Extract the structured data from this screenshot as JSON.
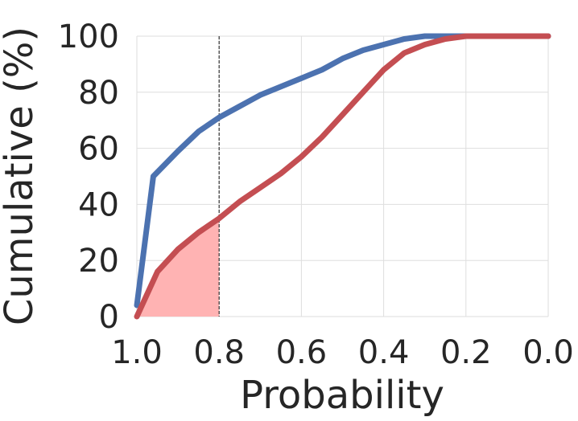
{
  "chart_data": {
    "type": "line",
    "xlabel": "Probability",
    "ylabel": "Cumulative (%)",
    "xlim": [
      1.0,
      0.0
    ],
    "ylim": [
      0,
      100
    ],
    "x_reversed": true,
    "grid": true,
    "legend": "none",
    "xticks": [
      1.0,
      0.8,
      0.6,
      0.4,
      0.2,
      0.0
    ],
    "xtick_labels": [
      "1.0",
      "0.8",
      "0.6",
      "0.4",
      "0.2",
      "0.0"
    ],
    "yticks": [
      0,
      20,
      40,
      60,
      80,
      100
    ],
    "ytick_labels": [
      "0",
      "20",
      "40",
      "60",
      "80",
      "100"
    ],
    "series": [
      {
        "color": "#4c72b0",
        "x": [
          1.0,
          0.96,
          0.9,
          0.85,
          0.8,
          0.75,
          0.7,
          0.6,
          0.55,
          0.5,
          0.45,
          0.4,
          0.35,
          0.3,
          0.25,
          0.2,
          0.1,
          0.0
        ],
        "y": [
          4,
          50,
          59,
          66,
          71,
          75,
          79,
          85,
          88,
          92,
          95,
          97,
          99,
          100,
          100,
          100,
          100,
          100
        ]
      },
      {
        "color": "#c44e52",
        "x": [
          1.0,
          0.95,
          0.9,
          0.85,
          0.8,
          0.75,
          0.7,
          0.65,
          0.6,
          0.55,
          0.5,
          0.45,
          0.4,
          0.35,
          0.3,
          0.25,
          0.2,
          0.15,
          0.1,
          0.0
        ],
        "y": [
          0,
          16,
          24,
          30,
          35,
          41,
          46,
          51,
          57,
          64,
          72,
          80,
          88,
          94,
          97,
          99,
          100,
          100,
          100,
          100
        ]
      }
    ],
    "vline_x": 0.8,
    "shaded_area": {
      "series_index": 1,
      "x_from": 1.0,
      "x_to": 0.8,
      "color": "#ffb3b3"
    }
  }
}
